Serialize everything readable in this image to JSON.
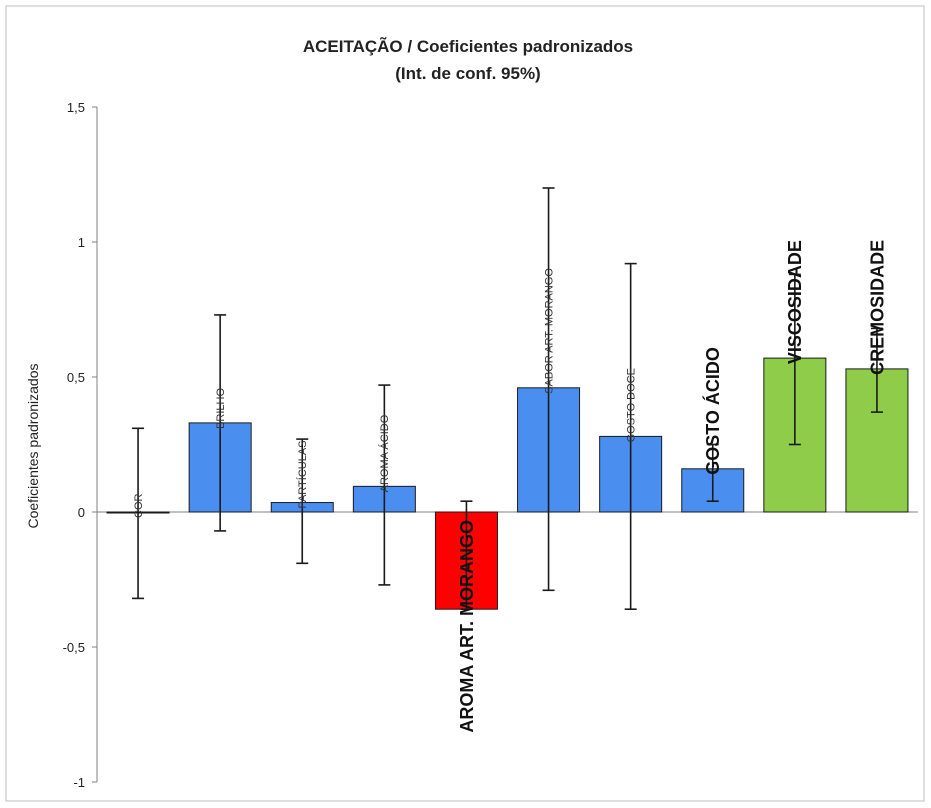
{
  "chart_data": {
    "type": "bar",
    "title": "ACEITAÇÃO / Coeficientes padronizados",
    "subtitle": "(Int. de conf. 95%)",
    "xlabel": "",
    "ylabel": "Coeficientes padronizados",
    "ylim": [
      -1,
      1.5
    ],
    "yticks": [
      "-1",
      "-0,5",
      "0",
      "0,5",
      "1",
      "1,5"
    ],
    "categories": [
      "COR",
      "BRILHO",
      "PARTÍCULAS",
      "AROMA ÁCIDO",
      "AROMA ART. MORANGO",
      "SABOR ART. MORANGO",
      "GOSTO DOCE",
      "GOSTO ÁCIDO",
      "VISCOSIDADE",
      "CREMOSIDADE"
    ],
    "values": [
      0.0,
      0.33,
      0.035,
      0.095,
      -0.36,
      0.46,
      0.28,
      0.16,
      0.57,
      0.53
    ],
    "error_low": [
      -0.32,
      -0.07,
      -0.19,
      -0.27,
      -0.36,
      -0.29,
      -0.36,
      0.04,
      0.25,
      0.37
    ],
    "error_high": [
      0.31,
      0.73,
      0.27,
      0.47,
      0.04,
      1.2,
      0.92,
      0.25,
      0.88,
      0.68
    ],
    "bar_colors": [
      "#4a8ff0",
      "#4a8ff0",
      "#4a8ff0",
      "#4a8ff0",
      "#ff0000",
      "#4a8ff0",
      "#4a8ff0",
      "#4a8ff0",
      "#8fcc4a",
      "#8fcc4a"
    ],
    "label_emphasis": [
      false,
      false,
      false,
      false,
      true,
      false,
      false,
      true,
      true,
      true
    ],
    "grid": false,
    "legend": "none"
  }
}
